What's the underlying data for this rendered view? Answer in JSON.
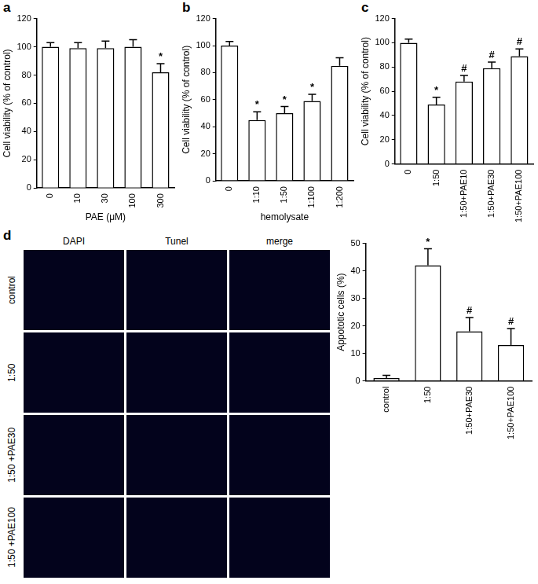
{
  "chart_data": [
    {
      "type": "bar",
      "panel": "a",
      "categories": [
        "0",
        "10",
        "30",
        "100",
        "300"
      ],
      "values": [
        100,
        99,
        99,
        100,
        82
      ],
      "error": [
        3,
        4,
        5,
        5,
        6
      ],
      "significance": [
        null,
        null,
        null,
        null,
        "*"
      ],
      "x_label": "PAE (μM)",
      "y_label": "Cell viability (% of control)",
      "ylim": [
        0,
        120
      ],
      "yticks": [
        0,
        20,
        40,
        60,
        80,
        100,
        120
      ],
      "grid": false,
      "color": "#ffffff"
    },
    {
      "type": "bar",
      "panel": "b",
      "categories": [
        "0",
        "1:10",
        "1:50",
        "1:100",
        "1:200"
      ],
      "values": [
        100,
        45,
        50,
        59,
        85
      ],
      "error": [
        3,
        6,
        5,
        5,
        6
      ],
      "significance": [
        null,
        "*",
        "*",
        "*",
        null
      ],
      "x_label": "hemolysate",
      "y_label": "Cell viability (% of control)",
      "ylim": [
        0,
        120
      ],
      "yticks": [
        0,
        20,
        40,
        60,
        80,
        100,
        120
      ],
      "grid": false,
      "color": "#ffffff"
    },
    {
      "type": "bar",
      "panel": "c",
      "categories": [
        "0",
        "1:50",
        "1:50+PAE10",
        "1:50+PAE30",
        "1:50+PAE100"
      ],
      "values": [
        100,
        49,
        68,
        79,
        89
      ],
      "error": [
        3,
        6,
        5,
        5,
        6
      ],
      "significance": [
        null,
        "*",
        "#",
        "#",
        "#"
      ],
      "y_label": "Cell viability (% of control)",
      "ylim": [
        0,
        120
      ],
      "yticks": [
        0,
        20,
        40,
        60,
        80,
        100,
        120
      ],
      "grid": false,
      "color": "#ffffff"
    },
    {
      "type": "bar",
      "categories": [
        "control",
        "1:50",
        "1:50+PAE30",
        "1:50+PAE100"
      ],
      "values": [
        1,
        42,
        18,
        13
      ],
      "error": [
        1,
        6,
        5,
        6
      ],
      "significance": [
        null,
        "*",
        "#",
        "#"
      ],
      "y_label": "Appototic cells (%)",
      "ylim": [
        0,
        50
      ],
      "yticks": [
        0,
        10,
        20,
        30,
        40,
        50
      ],
      "grid": false,
      "color": "#ffffff"
    }
  ],
  "images": {
    "panel": "d",
    "columns": [
      "DAPI",
      "Tunel",
      "merge"
    ],
    "rows": [
      "control",
      "1:50",
      "1:50 +PAE30",
      "1:50 +PAE100"
    ]
  }
}
